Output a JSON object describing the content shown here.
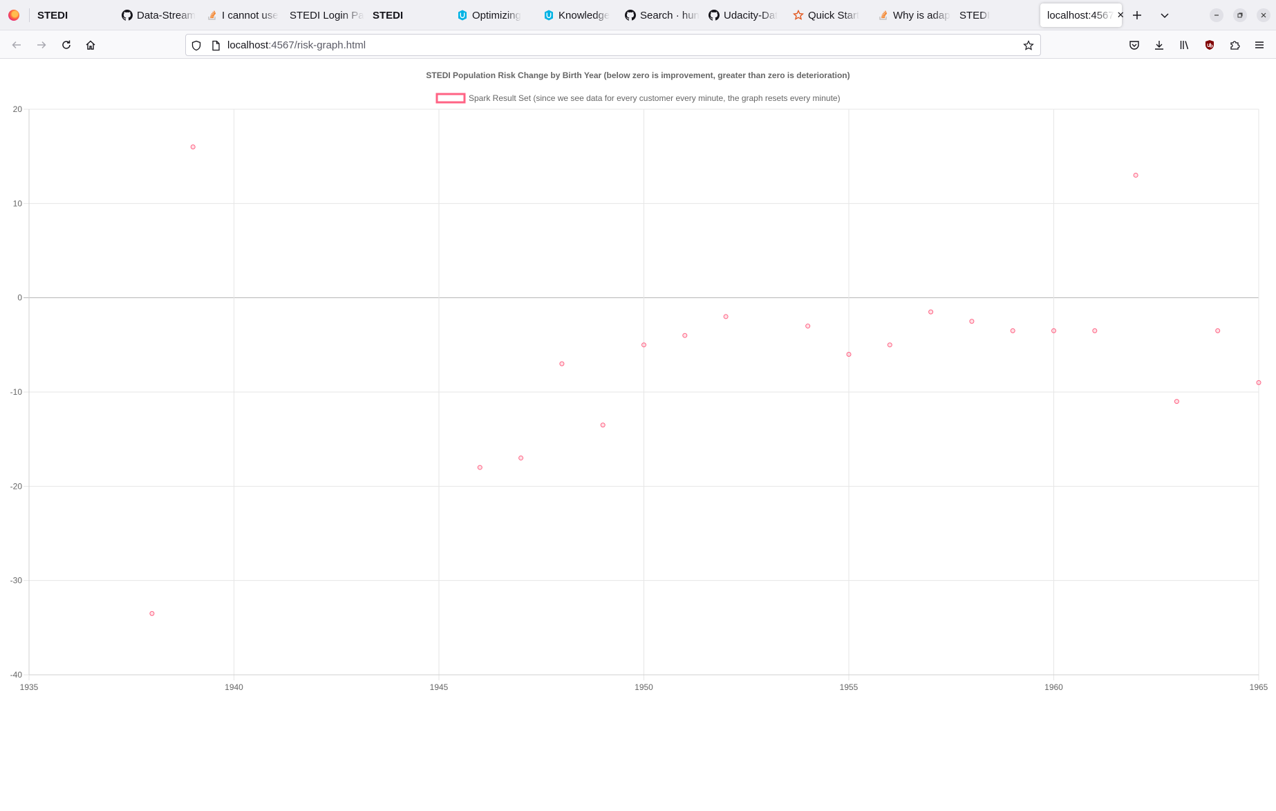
{
  "browser": {
    "tabs": [
      {
        "title": "STEDI",
        "bold": true,
        "icon": "none"
      },
      {
        "title": "Data-Stream",
        "icon": "github-icon"
      },
      {
        "title": "I cannot use",
        "icon": "stackoverflow-icon"
      },
      {
        "title": "STEDI Login Pa",
        "icon": "none"
      },
      {
        "title": "STEDI",
        "bold": true,
        "icon": "none"
      },
      {
        "title": "Optimizing",
        "icon": "udacity-icon"
      },
      {
        "title": "Knowledge",
        "icon": "udacity-icon"
      },
      {
        "title": "Search · hun",
        "icon": "github-icon"
      },
      {
        "title": "Udacity-Dat",
        "icon": "github-icon"
      },
      {
        "title": "Quick Start",
        "icon": "quickstart-icon"
      },
      {
        "title": "Why is adap",
        "icon": "stackoverflow-icon"
      },
      {
        "title": "STEDI",
        "icon": "none"
      },
      {
        "title": "localhost:4567",
        "icon": "none",
        "active": true
      }
    ],
    "url": {
      "host": "localhost",
      "rest": ":4567/risk-graph.html"
    }
  },
  "colors": {
    "series": "#ff6384",
    "grid": "#e6e6e6",
    "zero_line": "#b4b4b4",
    "text": "#666666"
  },
  "chart_data": {
    "type": "scatter",
    "title": "STEDI Population Risk Change by Birth Year (below zero is improvement, greater than zero is deterioration)",
    "legend_position": "top",
    "grid": true,
    "xlim": [
      1935,
      1965
    ],
    "ylim": [
      -40,
      20
    ],
    "x_ticks": [
      1935,
      1940,
      1945,
      1950,
      1955,
      1960,
      1965
    ],
    "y_ticks": [
      20,
      10,
      0,
      -10,
      -20,
      -30,
      -40
    ],
    "series": [
      {
        "name": "Spark Result Set (since we see data for every customer every minute, the graph resets every minute)",
        "points": [
          {
            "x": 1938,
            "y": -33.5
          },
          {
            "x": 1939,
            "y": 16
          },
          {
            "x": 1946,
            "y": -18
          },
          {
            "x": 1947,
            "y": -17
          },
          {
            "x": 1948,
            "y": -7
          },
          {
            "x": 1949,
            "y": -13.5
          },
          {
            "x": 1950,
            "y": -5
          },
          {
            "x": 1951,
            "y": -4
          },
          {
            "x": 1952,
            "y": -2
          },
          {
            "x": 1954,
            "y": -3
          },
          {
            "x": 1955,
            "y": -6
          },
          {
            "x": 1956,
            "y": -5
          },
          {
            "x": 1957,
            "y": -1.5
          },
          {
            "x": 1958,
            "y": -2.5
          },
          {
            "x": 1959,
            "y": -3.5
          },
          {
            "x": 1960,
            "y": -3.5
          },
          {
            "x": 1961,
            "y": -3.5
          },
          {
            "x": 1962,
            "y": 13
          },
          {
            "x": 1963,
            "y": -11
          },
          {
            "x": 1964,
            "y": -3.5
          },
          {
            "x": 1965,
            "y": -9
          }
        ]
      }
    ]
  }
}
